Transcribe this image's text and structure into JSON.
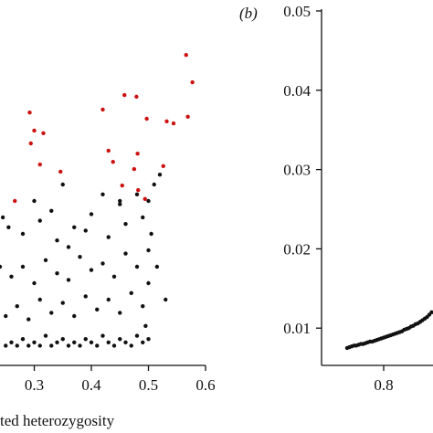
{
  "chart_data": [
    {
      "type": "scatter",
      "xlabel": "ted heterozygosity",
      "xlim": [
        0.24,
        0.6
      ],
      "ylim": [
        0,
        1
      ],
      "xticks": [
        0.3,
        0.4,
        0.5,
        0.6
      ],
      "series": [
        {
          "color": "#111111",
          "x": [
            0.25,
            0.26,
            0.27,
            0.28,
            0.29,
            0.3,
            0.31,
            0.32,
            0.33,
            0.34,
            0.35,
            0.36,
            0.37,
            0.38,
            0.39,
            0.4,
            0.41,
            0.42,
            0.43,
            0.44,
            0.45,
            0.46,
            0.47,
            0.48,
            0.49,
            0.5,
            0.25,
            0.27,
            0.29,
            0.31,
            0.33,
            0.35,
            0.37,
            0.39,
            0.41,
            0.43,
            0.45,
            0.47,
            0.49,
            0.26,
            0.28,
            0.3,
            0.32,
            0.34,
            0.36,
            0.38,
            0.4,
            0.42,
            0.44,
            0.46,
            0.48,
            0.5,
            0.28,
            0.31,
            0.34,
            0.37,
            0.4,
            0.43,
            0.46,
            0.49,
            0.5,
            0.51,
            0.52,
            0.505,
            0.515,
            0.53,
            0.3,
            0.33,
            0.36,
            0.39,
            0.42,
            0.45,
            0.48,
            0.24,
            0.245,
            0.255,
            0.35,
            0.45,
            0.5,
            0.495
          ],
          "values": [
            0.06,
            0.07,
            0.06,
            0.08,
            0.06,
            0.07,
            0.06,
            0.09,
            0.06,
            0.07,
            0.08,
            0.06,
            0.07,
            0.06,
            0.08,
            0.07,
            0.06,
            0.09,
            0.07,
            0.06,
            0.08,
            0.07,
            0.06,
            0.09,
            0.07,
            0.08,
            0.15,
            0.18,
            0.14,
            0.2,
            0.16,
            0.19,
            0.15,
            0.21,
            0.17,
            0.2,
            0.16,
            0.22,
            0.18,
            0.27,
            0.3,
            0.25,
            0.32,
            0.28,
            0.26,
            0.33,
            0.29,
            0.31,
            0.27,
            0.34,
            0.3,
            0.35,
            0.4,
            0.44,
            0.38,
            0.42,
            0.46,
            0.39,
            0.43,
            0.45,
            0.5,
            0.55,
            0.58,
            0.4,
            0.3,
            0.2,
            0.5,
            0.47,
            0.36,
            0.41,
            0.52,
            0.49,
            0.52,
            0.3,
            0.45,
            0.42,
            0.55,
            0.5,
            0.25,
            0.12
          ]
        },
        {
          "color": "#cc1111",
          "x": [
            0.566,
            0.577,
            0.458,
            0.479,
            0.42,
            0.292,
            0.497,
            0.532,
            0.569,
            0.544,
            0.3,
            0.316,
            0.294,
            0.43,
            0.481,
            0.438,
            0.31,
            0.475,
            0.346,
            0.454,
            0.482,
            0.266,
            0.494,
            0.526
          ],
          "values": [
            0.944,
            0.861,
            0.822,
            0.817,
            0.778,
            0.769,
            0.75,
            0.742,
            0.756,
            0.736,
            0.714,
            0.706,
            0.675,
            0.653,
            0.644,
            0.619,
            0.611,
            0.597,
            0.589,
            0.547,
            0.533,
            0.5,
            0.506,
            0.606
          ]
        }
      ]
    },
    {
      "type": "scatter",
      "panel_label": "(b)",
      "xlim": [
        0.664,
        0.908
      ],
      "ylim": [
        0.0053,
        0.05
      ],
      "xticks": [
        0.8
      ],
      "yticks": [
        0.01,
        0.02,
        0.03,
        0.04,
        0.05
      ],
      "series": [
        {
          "color": "#111111",
          "x": [
            0.72,
            0.725,
            0.73,
            0.735,
            0.74,
            0.745,
            0.75,
            0.755,
            0.76,
            0.765,
            0.77,
            0.775,
            0.78,
            0.785,
            0.79,
            0.795,
            0.8,
            0.805,
            0.81,
            0.815,
            0.82,
            0.825,
            0.83,
            0.835,
            0.84,
            0.845,
            0.85,
            0.855,
            0.86,
            0.865,
            0.87,
            0.875,
            0.88,
            0.885,
            0.89,
            0.895,
            0.9,
            0.905
          ],
          "values": [
            0.0075,
            0.0076,
            0.0077,
            0.0078,
            0.0078,
            0.0079,
            0.008,
            0.008,
            0.0081,
            0.0082,
            0.0083,
            0.0083,
            0.0084,
            0.0085,
            0.0086,
            0.0087,
            0.0088,
            0.0089,
            0.009,
            0.0091,
            0.0092,
            0.0093,
            0.0094,
            0.0095,
            0.0096,
            0.0098,
            0.0099,
            0.01,
            0.0102,
            0.0103,
            0.0105,
            0.0106,
            0.0108,
            0.011,
            0.0112,
            0.0114,
            0.0117,
            0.012
          ]
        }
      ]
    }
  ]
}
